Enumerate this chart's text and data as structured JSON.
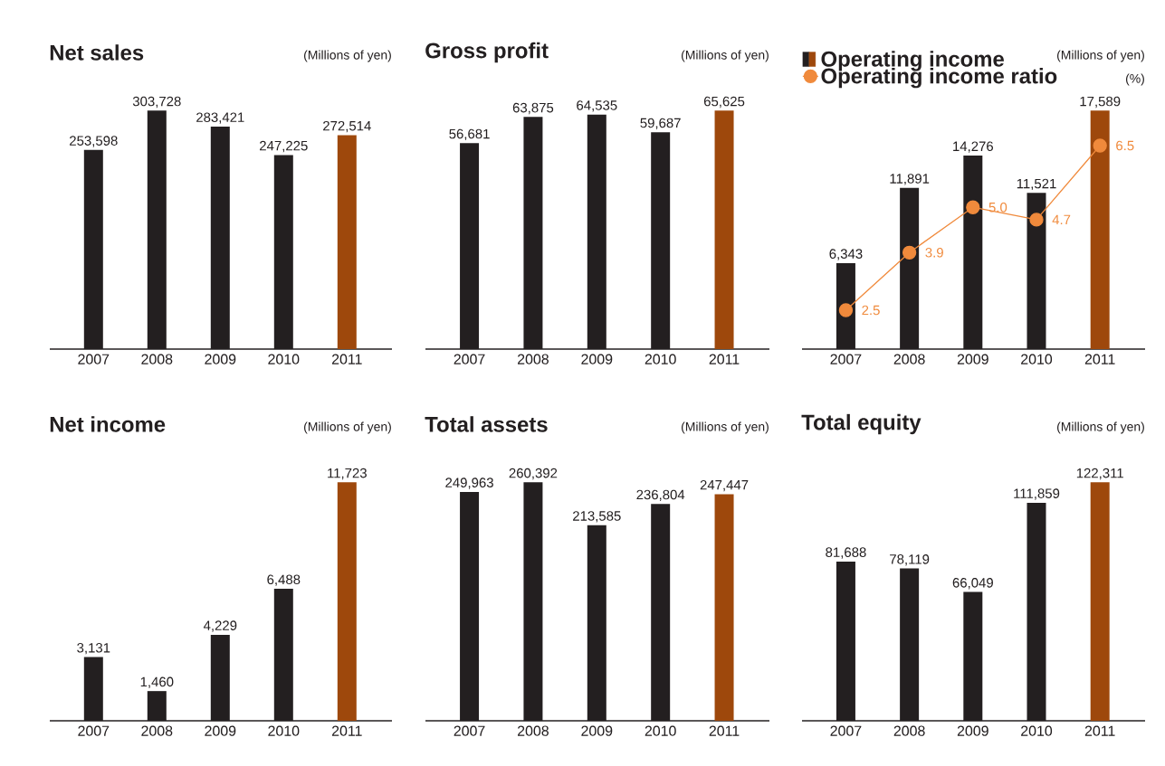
{
  "chart_data": [
    {
      "type": "bar",
      "title": "Net sales",
      "ylabel": "(Millions of yen)",
      "categories": [
        "2007",
        "2008",
        "2009",
        "2010",
        "2011"
      ],
      "values": [
        253598,
        303728,
        283421,
        247225,
        272514
      ],
      "colors": [
        "#231f20",
        "#231f20",
        "#231f20",
        "#231f20",
        "#9e480c"
      ],
      "value_labels": [
        "253,598",
        "303,728",
        "283,421",
        "247,225",
        "272,514"
      ]
    },
    {
      "type": "bar",
      "title": "Gross profit",
      "ylabel": "(Millions of yen)",
      "categories": [
        "2007",
        "2008",
        "2009",
        "2010",
        "2011"
      ],
      "values": [
        56681,
        63875,
        64535,
        59687,
        65625
      ],
      "colors": [
        "#231f20",
        "#231f20",
        "#231f20",
        "#231f20",
        "#9e480c"
      ],
      "value_labels": [
        "56,681",
        "63,875",
        "64,535",
        "59,687",
        "65,625"
      ]
    },
    {
      "type": "bar",
      "ylabel": "(Millions of yen)",
      "y2label": "(%)",
      "legend": "top left",
      "categories": [
        "2007",
        "2008",
        "2009",
        "2010",
        "2011"
      ],
      "series": [
        {
          "name": "Operating income",
          "type": "bar",
          "colors": [
            "#231f20",
            "#231f20",
            "#231f20",
            "#231f20",
            "#9e480c"
          ],
          "values": [
            6343,
            11891,
            14276,
            11521,
            17589
          ],
          "value_labels": [
            "6,343",
            "11,891",
            "14,276",
            "11,521",
            "17,589"
          ]
        },
        {
          "name": "Operating income ratio",
          "type": "line",
          "axis": "y2",
          "color": "#f08a3c",
          "marker": "circle",
          "values": [
            2.5,
            3.9,
            5.0,
            4.7,
            6.5
          ],
          "value_labels": [
            "2.5",
            "3.9",
            "5.0",
            "4.7",
            "6.5"
          ]
        }
      ]
    },
    {
      "type": "bar",
      "title": "Net income",
      "ylabel": "(Millions of yen)",
      "categories": [
        "2007",
        "2008",
        "2009",
        "2010",
        "2011"
      ],
      "values": [
        3131,
        1460,
        4229,
        6488,
        11723
      ],
      "colors": [
        "#231f20",
        "#231f20",
        "#231f20",
        "#231f20",
        "#9e480c"
      ],
      "value_labels": [
        "3,131",
        "1,460",
        "4,229",
        "6,488",
        "11,723"
      ]
    },
    {
      "type": "bar",
      "title": "Total assets",
      "ylabel": "(Millions of yen)",
      "categories": [
        "2007",
        "2008",
        "2009",
        "2010",
        "2011"
      ],
      "values": [
        249963,
        260392,
        213585,
        236804,
        247447
      ],
      "colors": [
        "#231f20",
        "#231f20",
        "#231f20",
        "#231f20",
        "#9e480c"
      ],
      "value_labels": [
        "249,963",
        "260,392",
        "213,585",
        "236,804",
        "247,447"
      ]
    },
    {
      "type": "bar",
      "title": "Total equity",
      "ylabel": "(Millions of yen)",
      "categories": [
        "2007",
        "2008",
        "2009",
        "2010",
        "2011"
      ],
      "values": [
        81688,
        78119,
        66049,
        111859,
        122311
      ],
      "colors": [
        "#231f20",
        "#231f20",
        "#231f20",
        "#231f20",
        "#9e480c"
      ],
      "value_labels": [
        "81,688",
        "78,119",
        "66,049",
        "111,859",
        "122,311"
      ]
    }
  ]
}
